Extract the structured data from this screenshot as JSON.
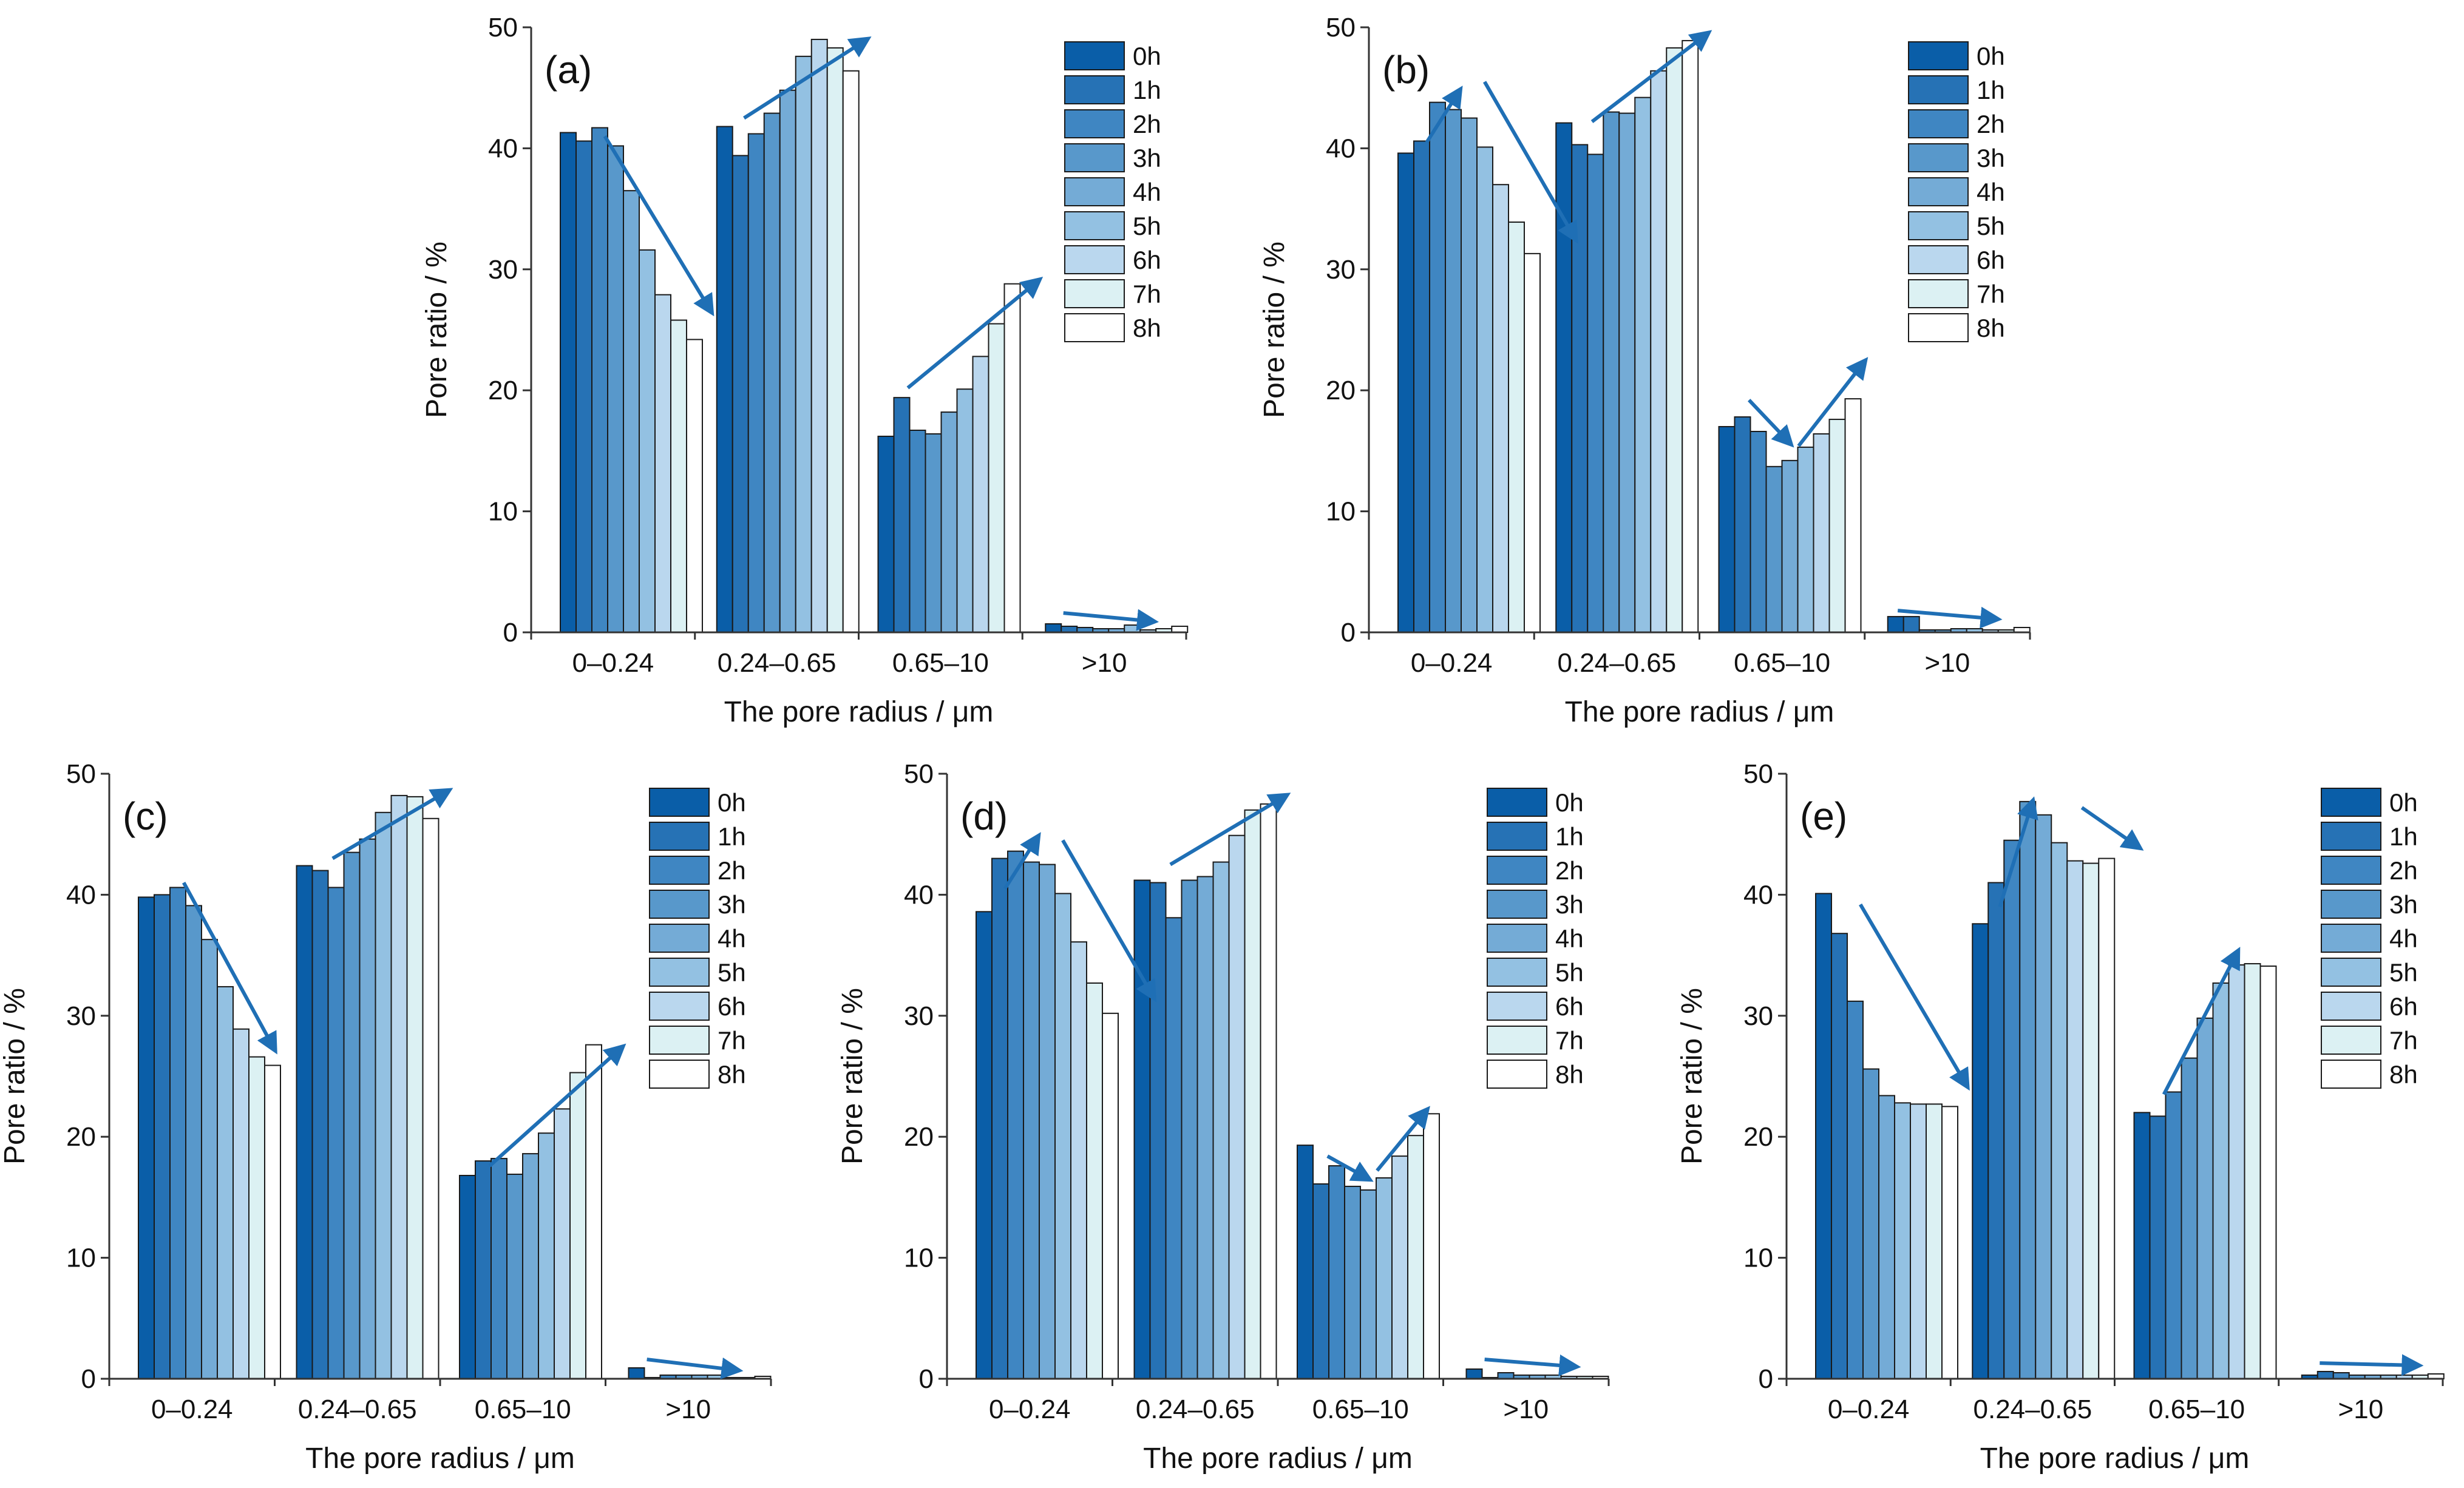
{
  "chart_data": [
    {
      "type": "bar",
      "panel_label": "(a)",
      "categories": [
        "0–0.24",
        "0.24–0.65",
        "0.65–10",
        ">10"
      ],
      "series": [
        {
          "name": "0h",
          "values": [
            41.3,
            41.8,
            16.2,
            0.7
          ]
        },
        {
          "name": "1h",
          "values": [
            40.6,
            39.4,
            19.4,
            0.5
          ]
        },
        {
          "name": "2h",
          "values": [
            41.7,
            41.2,
            16.7,
            0.4
          ]
        },
        {
          "name": "3h",
          "values": [
            40.2,
            42.9,
            16.4,
            0.3
          ]
        },
        {
          "name": "4h",
          "values": [
            36.5,
            44.8,
            18.2,
            0.3
          ]
        },
        {
          "name": "5h",
          "values": [
            31.6,
            47.6,
            20.1,
            0.6
          ]
        },
        {
          "name": "6h",
          "values": [
            27.9,
            49.0,
            22.8,
            0.2
          ]
        },
        {
          "name": "7h",
          "values": [
            25.8,
            48.3,
            25.5,
            0.3
          ]
        },
        {
          "name": "8h",
          "values": [
            24.2,
            46.4,
            28.8,
            0.5
          ]
        }
      ],
      "xlabel": "The pore radius / μm",
      "ylabel": "Pore ratio / %",
      "ylim": [
        0,
        50
      ],
      "yticks": [
        "0",
        "10",
        "20",
        "30",
        "40",
        "50"
      ],
      "legend_position": "top-right",
      "trend_arrows": [
        {
          "category": "0–0.24",
          "from": [
            0.45,
            41
          ],
          "to": [
            1.1,
            26.5
          ]
        },
        {
          "category": "0.24–0.65",
          "from": [
            1.3,
            42.5
          ],
          "to": [
            2.05,
            49
          ]
        },
        {
          "category": "0.65–10",
          "from": [
            2.3,
            20.2
          ],
          "to": [
            3.1,
            29.1
          ]
        },
        {
          "category": ">10",
          "from": [
            3.25,
            1.6
          ],
          "to": [
            3.8,
            0.9
          ]
        }
      ]
    },
    {
      "type": "bar",
      "panel_label": "(b)",
      "categories": [
        "0–0.24",
        "0.24–0.65",
        "0.65–10",
        ">10"
      ],
      "series": [
        {
          "name": "0h",
          "values": [
            39.6,
            42.1,
            17.0,
            1.3
          ]
        },
        {
          "name": "1h",
          "values": [
            40.6,
            40.3,
            17.8,
            1.3
          ]
        },
        {
          "name": "2h",
          "values": [
            43.8,
            39.5,
            16.6,
            0.2
          ]
        },
        {
          "name": "3h",
          "values": [
            43.2,
            43.0,
            13.7,
            0.2
          ]
        },
        {
          "name": "4h",
          "values": [
            42.5,
            42.9,
            14.2,
            0.3
          ]
        },
        {
          "name": "5h",
          "values": [
            40.1,
            44.2,
            15.3,
            0.3
          ]
        },
        {
          "name": "6h",
          "values": [
            37.0,
            46.4,
            16.4,
            0.2
          ]
        },
        {
          "name": "7h",
          "values": [
            33.9,
            48.3,
            17.6,
            0.2
          ]
        },
        {
          "name": "8h",
          "values": [
            31.3,
            48.9,
            19.3,
            0.4
          ]
        }
      ],
      "xlabel": "The pore radius / μm",
      "ylabel": "Pore ratio / %",
      "ylim": [
        0,
        50
      ],
      "yticks": [
        "0",
        "10",
        "20",
        "30",
        "40",
        "50"
      ],
      "legend_position": "top-right",
      "trend_arrows": [
        {
          "category": "0–0.24",
          "from": [
            0.35,
            40.5
          ],
          "to": [
            0.55,
            44.8
          ]
        },
        {
          "category": "0–0.24",
          "from": [
            0.7,
            45.5
          ],
          "to": [
            1.25,
            32.5
          ]
        },
        {
          "category": "0.24–0.65",
          "from": [
            1.35,
            42.2
          ],
          "to": [
            2.05,
            49.5
          ]
        },
        {
          "category": "0.65–10",
          "from": [
            2.3,
            19.2
          ],
          "to": [
            2.55,
            15.6
          ]
        },
        {
          "category": "0.65–10",
          "from": [
            2.6,
            15.4
          ],
          "to": [
            3.0,
            22.4
          ]
        },
        {
          "category": ">10",
          "from": [
            3.2,
            1.8
          ],
          "to": [
            3.8,
            1.1
          ]
        }
      ]
    },
    {
      "type": "bar",
      "panel_label": "(c)",
      "categories": [
        "0–0.24",
        "0.24–0.65",
        "0.65–10",
        ">10"
      ],
      "series": [
        {
          "name": "0h",
          "values": [
            39.8,
            42.4,
            16.8,
            0.9
          ]
        },
        {
          "name": "1h",
          "values": [
            40.0,
            42.0,
            18.0,
            0.1
          ]
        },
        {
          "name": "2h",
          "values": [
            40.6,
            40.6,
            18.2,
            0.3
          ]
        },
        {
          "name": "3h",
          "values": [
            39.1,
            43.5,
            16.9,
            0.3
          ]
        },
        {
          "name": "4h",
          "values": [
            36.3,
            44.6,
            18.6,
            0.3
          ]
        },
        {
          "name": "5h",
          "values": [
            32.4,
            46.8,
            20.3,
            0.3
          ]
        },
        {
          "name": "6h",
          "values": [
            28.9,
            48.2,
            22.3,
            0.1
          ]
        },
        {
          "name": "7h",
          "values": [
            26.6,
            48.1,
            25.3,
            0.1
          ]
        },
        {
          "name": "8h",
          "values": [
            25.9,
            46.3,
            27.6,
            0.2
          ]
        }
      ],
      "xlabel": "The pore radius / μm",
      "ylabel": "Pore ratio / %",
      "ylim": [
        0,
        50
      ],
      "yticks": [
        "0",
        "10",
        "20",
        "30",
        "40",
        "50"
      ],
      "legend_position": "top-right",
      "trend_arrows": [
        {
          "category": "0–0.24",
          "from": [
            0.45,
            41
          ],
          "to": [
            1.0,
            27.2
          ]
        },
        {
          "category": "0.24–0.65",
          "from": [
            1.35,
            43
          ],
          "to": [
            2.05,
            48.6
          ]
        },
        {
          "category": "0.65–10",
          "from": [
            2.3,
            17.6
          ],
          "to": [
            3.1,
            27.4
          ]
        },
        {
          "category": ">10",
          "from": [
            3.25,
            1.6
          ],
          "to": [
            3.8,
            0.7
          ]
        }
      ]
    },
    {
      "type": "bar",
      "panel_label": "(d)",
      "categories": [
        "0–0.24",
        "0.24–0.65",
        "0.65–10",
        ">10"
      ],
      "series": [
        {
          "name": "0h",
          "values": [
            38.6,
            41.2,
            19.3,
            0.8
          ]
        },
        {
          "name": "1h",
          "values": [
            43.0,
            41.0,
            16.1,
            0.1
          ]
        },
        {
          "name": "2h",
          "values": [
            43.6,
            38.1,
            17.6,
            0.5
          ]
        },
        {
          "name": "3h",
          "values": [
            42.7,
            41.2,
            15.9,
            0.3
          ]
        },
        {
          "name": "4h",
          "values": [
            42.5,
            41.5,
            15.6,
            0.3
          ]
        },
        {
          "name": "5h",
          "values": [
            40.1,
            42.7,
            16.6,
            0.3
          ]
        },
        {
          "name": "6h",
          "values": [
            36.1,
            44.9,
            18.4,
            0.2
          ]
        },
        {
          "name": "7h",
          "values": [
            32.7,
            47.0,
            20.1,
            0.2
          ]
        },
        {
          "name": "8h",
          "values": [
            30.2,
            47.5,
            21.9,
            0.2
          ]
        }
      ],
      "xlabel": "The pore radius / μm",
      "ylabel": "Pore ratio / %",
      "ylim": [
        0,
        50
      ],
      "yticks": [
        "0",
        "10",
        "20",
        "30",
        "40",
        "50"
      ],
      "legend_position": "top-right",
      "trend_arrows": [
        {
          "category": "0–0.24",
          "from": [
            0.35,
            40.5
          ],
          "to": [
            0.55,
            44.8
          ]
        },
        {
          "category": "0–0.24",
          "from": [
            0.7,
            44.5
          ],
          "to": [
            1.25,
            31.5
          ]
        },
        {
          "category": "0.24–0.65",
          "from": [
            1.35,
            42.5
          ],
          "to": [
            2.05,
            48.2
          ]
        },
        {
          "category": "0.65–10",
          "from": [
            2.3,
            18.4
          ],
          "to": [
            2.55,
            16.5
          ]
        },
        {
          "category": "0.65–10",
          "from": [
            2.6,
            17.2
          ],
          "to": [
            2.9,
            22.2
          ]
        },
        {
          "category": ">10",
          "from": [
            3.25,
            1.6
          ],
          "to": [
            3.8,
            1.0
          ]
        }
      ]
    },
    {
      "type": "bar",
      "panel_label": "(e)",
      "categories": [
        "0–0.24",
        "0.24–0.65",
        "0.65–10",
        ">10"
      ],
      "series": [
        {
          "name": "0h",
          "values": [
            40.1,
            37.6,
            22.0,
            0.3
          ]
        },
        {
          "name": "1h",
          "values": [
            36.8,
            41.0,
            21.7,
            0.6
          ]
        },
        {
          "name": "2h",
          "values": [
            31.2,
            44.5,
            23.7,
            0.5
          ]
        },
        {
          "name": "3h",
          "values": [
            25.6,
            47.7,
            26.5,
            0.3
          ]
        },
        {
          "name": "4h",
          "values": [
            23.4,
            46.6,
            29.8,
            0.3
          ]
        },
        {
          "name": "5h",
          "values": [
            22.8,
            44.3,
            32.7,
            0.3
          ]
        },
        {
          "name": "6h",
          "values": [
            22.7,
            42.8,
            34.2,
            0.3
          ]
        },
        {
          "name": "7h",
          "values": [
            22.7,
            42.6,
            34.3,
            0.3
          ]
        },
        {
          "name": "8h",
          "values": [
            22.5,
            43.0,
            34.1,
            0.4
          ]
        }
      ],
      "xlabel": "The pore radius / μm",
      "ylabel": "Pore ratio / %",
      "ylim": [
        0,
        50
      ],
      "yticks": [
        "0",
        "10",
        "20",
        "30",
        "40",
        "50"
      ],
      "legend_position": "top-right",
      "trend_arrows": [
        {
          "category": "0–0.24",
          "from": [
            0.45,
            39.2
          ],
          "to": [
            1.1,
            24.2
          ]
        },
        {
          "category": "0.24–0.65",
          "from": [
            1.3,
            39
          ],
          "to": [
            1.5,
            47.7
          ]
        },
        {
          "category": "0.24–0.65",
          "from": [
            1.8,
            47.2
          ],
          "to": [
            2.15,
            43.9
          ]
        },
        {
          "category": "0.65–10",
          "from": [
            2.3,
            23.5
          ],
          "to": [
            2.75,
            35.3
          ]
        },
        {
          "category": ">10",
          "from": [
            3.25,
            1.3
          ],
          "to": [
            3.85,
            1.1
          ]
        }
      ]
    }
  ],
  "colors": {
    "series": [
      "#0a5ea8",
      "#2672b5",
      "#3f86c2",
      "#5898cb",
      "#74abd6",
      "#93c1e2",
      "#bad7ee",
      "#dcf1f3",
      "#ffffff"
    ],
    "arrow": "#1f6fb5",
    "axis": "#333333"
  }
}
